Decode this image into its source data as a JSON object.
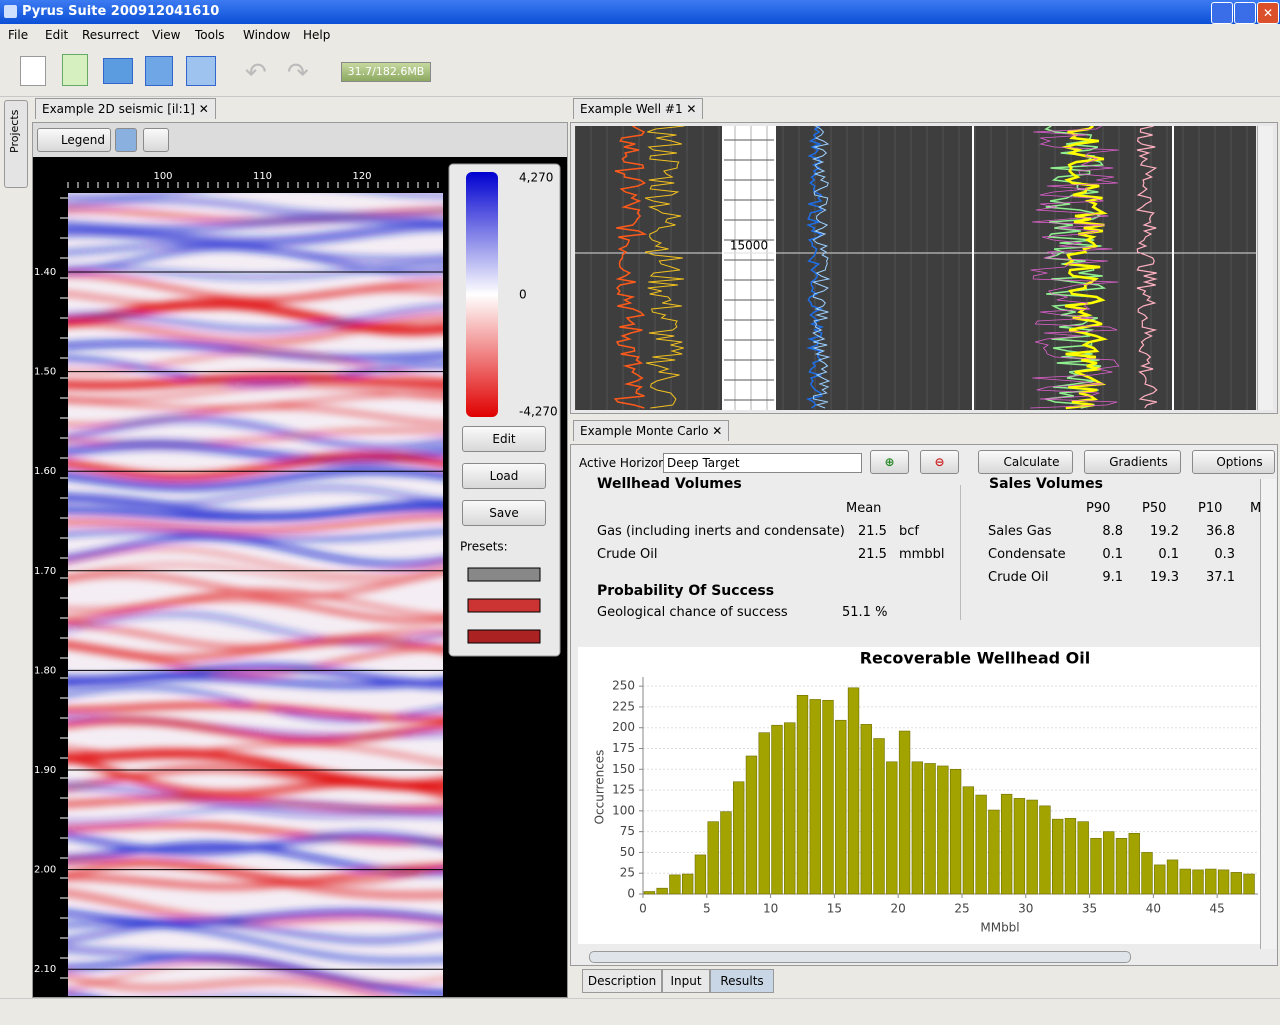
{
  "window": {
    "title": "Pyrus Suite 200912041610"
  },
  "menu": [
    "File",
    "Edit",
    "Resurrect",
    "View",
    "Tools",
    "Window",
    "Help"
  ],
  "toolbar": {
    "memory": "31.7/182.6MB"
  },
  "side_tab": "Projects",
  "seismic": {
    "tab": "Example 2D seismic [il:1]",
    "legend_button": "Legend",
    "x_ticks": [
      "100",
      "110",
      "120"
    ],
    "y_ticks": [
      "1.40",
      "1.50",
      "1.60",
      "1.70",
      "1.80",
      "1.90",
      "2.00",
      "2.10"
    ],
    "colorbar": [
      "4,270",
      "0",
      "-4,270"
    ],
    "buttons": [
      "Edit",
      "Load",
      "Save"
    ],
    "presets_label": "Presets:"
  },
  "well": {
    "tab": "Example Well #1",
    "depth_label": "15000"
  },
  "monte_carlo": {
    "tab": "Example Monte Carlo",
    "horizon_label": "Active Horizon",
    "horizon_value": "Deep Target",
    "buttons": [
      "Calculate",
      "Gradients",
      "Options"
    ],
    "wellhead": {
      "title": "Wellhead Volumes",
      "header": "Mean",
      "rows": [
        [
          "Gas (including inerts and condensate)",
          21.5,
          "bcf"
        ],
        [
          "Crude Oil",
          21.5,
          "mmbbl"
        ]
      ]
    },
    "probability": {
      "title": "Probability Of Success",
      "label": "Geological chance of success",
      "value": "51.1 %"
    },
    "sales": {
      "title": "Sales Volumes",
      "headers": [
        "P90",
        "P50",
        "P10",
        "M"
      ],
      "rows": [
        [
          "Sales Gas",
          8.8,
          19.2,
          36.8
        ],
        [
          "Condensate",
          0.1,
          0.1,
          0.3
        ],
        [
          "Crude Oil",
          9.1,
          19.3,
          37.1
        ]
      ]
    },
    "bottom_tabs": [
      "Description",
      "Input",
      "Results"
    ]
  },
  "chart_data": {
    "type": "histogram",
    "title": "Recoverable Wellhead Oil",
    "x_label": "MMbbl",
    "y_label": "Occurrences",
    "bins": [
      0,
      1,
      2,
      3,
      4,
      5,
      6,
      7,
      8,
      9,
      10,
      11,
      12,
      13,
      14,
      15,
      16,
      17,
      18,
      19,
      20,
      21,
      22,
      23,
      24,
      25,
      26,
      27,
      28,
      29,
      30,
      31,
      32,
      33,
      34,
      35,
      36,
      37,
      38,
      39,
      40,
      41,
      42,
      43,
      44,
      45,
      46,
      47,
      48
    ],
    "values": [
      3,
      7,
      23,
      24,
      47,
      87,
      99,
      135,
      166,
      194,
      203,
      206,
      239,
      234,
      233,
      209,
      248,
      204,
      187,
      159,
      196,
      159,
      157,
      154,
      150,
      129,
      119,
      101,
      120,
      115,
      113,
      106,
      90,
      91,
      87,
      67,
      75,
      67,
      73,
      50,
      35,
      41,
      30,
      29,
      30,
      29,
      26,
      24
    ],
    "color": "#a3a300",
    "xlim": [
      0,
      48.2
    ],
    "ylim": [
      0,
      261
    ],
    "xticks": [
      0,
      5,
      10,
      15,
      20,
      25,
      30,
      35,
      40,
      45
    ],
    "yticks": [
      0,
      25,
      50,
      75,
      100,
      125,
      150,
      175,
      200,
      225,
      250
    ],
    "grid": true
  }
}
